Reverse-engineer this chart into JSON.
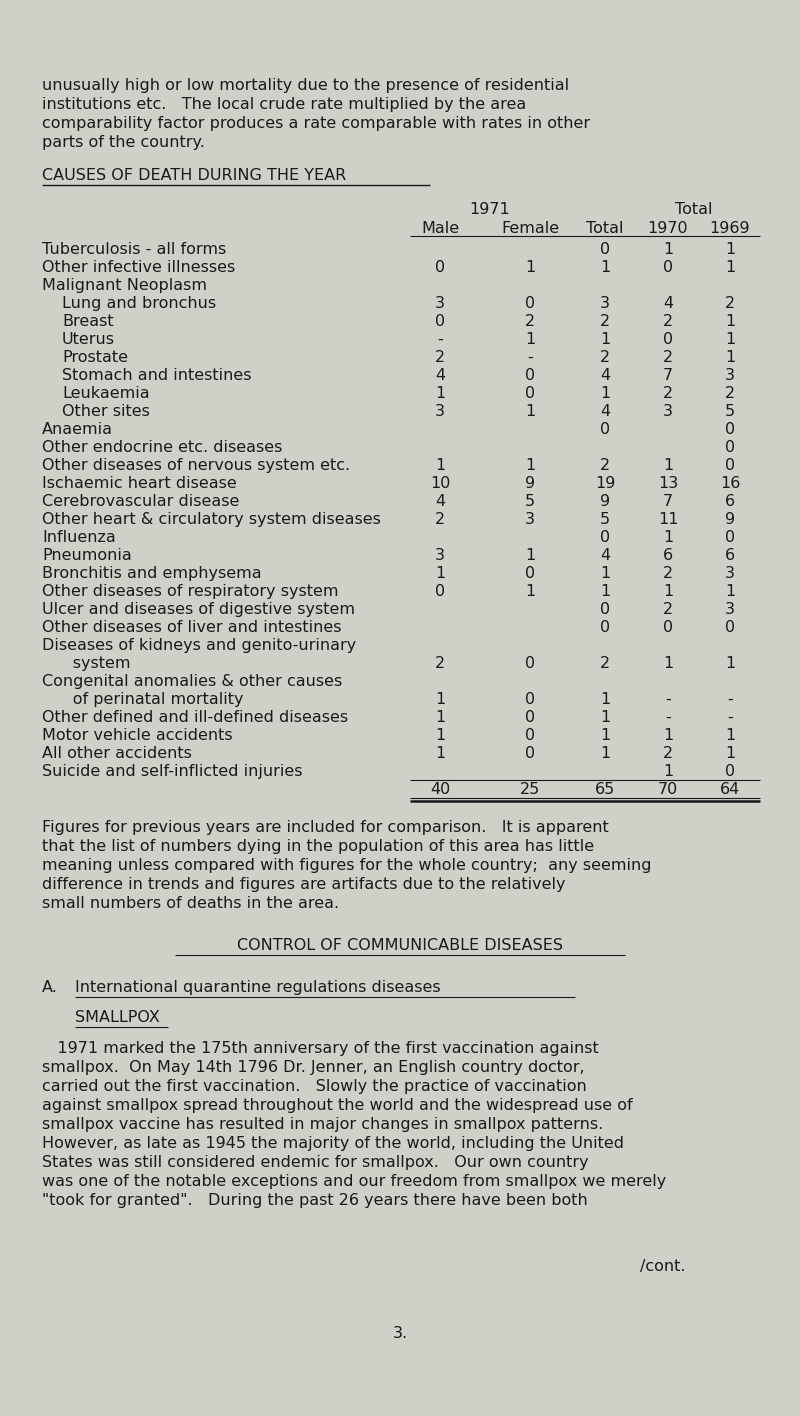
{
  "bg_color": "#cdd1c8",
  "text_color": "#1a1a1a",
  "font_family": "Courier New",
  "page_width": 8.0,
  "page_height": 14.16,
  "intro_text": [
    "unusually high or low mortality due to the presence of residential",
    "institutions etc.   The local crude rate multiplied by the area",
    "comparability factor produces a rate comparable with rates in other",
    "parts of the country."
  ],
  "section_title": "CAUSES OF DEATH DURING THE YEAR",
  "table_rows": [
    {
      "label": "Tuberculosis - all forms",
      "indent": 0,
      "male": "",
      "female": "",
      "total": "0",
      "y1970": "1",
      "y1969": "1"
    },
    {
      "label": "Other infective illnesses",
      "indent": 0,
      "male": "0",
      "female": "1",
      "total": "1",
      "y1970": "0",
      "y1969": "1"
    },
    {
      "label": "Malignant Neoplasm",
      "indent": 0,
      "male": "",
      "female": "",
      "total": "",
      "y1970": "",
      "y1969": ""
    },
    {
      "label": "Lung and bronchus",
      "indent": 1,
      "male": "3",
      "female": "0",
      "total": "3",
      "y1970": "4",
      "y1969": "2"
    },
    {
      "label": "Breast",
      "indent": 1,
      "male": "0",
      "female": "2",
      "total": "2",
      "y1970": "2",
      "y1969": "1"
    },
    {
      "label": "Uterus",
      "indent": 1,
      "male": "-",
      "female": "1",
      "total": "1",
      "y1970": "0",
      "y1969": "1"
    },
    {
      "label": "Prostate",
      "indent": 1,
      "male": "2",
      "female": "-",
      "total": "2",
      "y1970": "2",
      "y1969": "1"
    },
    {
      "label": "Stomach and intestines",
      "indent": 1,
      "male": "4",
      "female": "0",
      "total": "4",
      "y1970": "7",
      "y1969": "3"
    },
    {
      "label": "Leukaemia",
      "indent": 1,
      "male": "1",
      "female": "0",
      "total": "1",
      "y1970": "2",
      "y1969": "2"
    },
    {
      "label": "Other sites",
      "indent": 1,
      "male": "3",
      "female": "1",
      "total": "4",
      "y1970": "3",
      "y1969": "5"
    },
    {
      "label": "Anaemia",
      "indent": 0,
      "male": "",
      "female": "",
      "total": "0",
      "y1970": "",
      "y1969": "0"
    },
    {
      "label": "Other endocrine etc. diseases",
      "indent": 0,
      "male": "",
      "female": "",
      "total": "",
      "y1970": "",
      "y1969": "0"
    },
    {
      "label": "Other diseases of nervous system etc.",
      "indent": 0,
      "male": "1",
      "female": "1",
      "total": "2",
      "y1970": "1",
      "y1969": "0"
    },
    {
      "label": "Ischaemic heart disease",
      "indent": 0,
      "male": "10",
      "female": "9",
      "total": "19",
      "y1970": "13",
      "y1969": "16"
    },
    {
      "label": "Cerebrovascular disease",
      "indent": 0,
      "male": "4",
      "female": "5",
      "total": "9",
      "y1970": "7",
      "y1969": "6"
    },
    {
      "label": "Other heart & circulatory system diseases",
      "indent": 0,
      "male": "2",
      "female": "3",
      "total": "5",
      "y1970": "11",
      "y1969": "9"
    },
    {
      "label": "Influenza",
      "indent": 0,
      "male": "",
      "female": "",
      "total": "0",
      "y1970": "1",
      "y1969": "0"
    },
    {
      "label": "Pneumonia",
      "indent": 0,
      "male": "3",
      "female": "1",
      "total": "4",
      "y1970": "6",
      "y1969": "6"
    },
    {
      "label": "Bronchitis and emphysema",
      "indent": 0,
      "male": "1",
      "female": "0",
      "total": "1",
      "y1970": "2",
      "y1969": "3"
    },
    {
      "label": "Other diseases of respiratory system",
      "indent": 0,
      "male": "0",
      "female": "1",
      "total": "1",
      "y1970": "1",
      "y1969": "1"
    },
    {
      "label": "Ulcer and diseases of digestive system",
      "indent": 0,
      "male": "",
      "female": "",
      "total": "0",
      "y1970": "2",
      "y1969": "3"
    },
    {
      "label": "Other diseases of liver and intestines",
      "indent": 0,
      "male": "",
      "female": "",
      "total": "0",
      "y1970": "0",
      "y1969": "0"
    },
    {
      "label": "Diseases of kidneys and genito-urinary",
      "indent": 0,
      "male": "",
      "female": "",
      "total": "",
      "y1970": "",
      "y1969": ""
    },
    {
      "label": "      system",
      "indent": 0,
      "male": "2",
      "female": "0",
      "total": "2",
      "y1970": "1",
      "y1969": "1"
    },
    {
      "label": "Congenital anomalies & other causes",
      "indent": 0,
      "male": "",
      "female": "",
      "total": "",
      "y1970": "",
      "y1969": ""
    },
    {
      "label": "      of perinatal mortality",
      "indent": 0,
      "male": "1",
      "female": "0",
      "total": "1",
      "y1970": "-",
      "y1969": "-"
    },
    {
      "label": "Other defined and ill-defined diseases",
      "indent": 0,
      "male": "1",
      "female": "0",
      "total": "1",
      "y1970": "-",
      "y1969": "-"
    },
    {
      "label": "Motor vehicle accidents",
      "indent": 0,
      "male": "1",
      "female": "0",
      "total": "1",
      "y1970": "1",
      "y1969": "1"
    },
    {
      "label": "All other accidents",
      "indent": 0,
      "male": "1",
      "female": "0",
      "total": "1",
      "y1970": "2",
      "y1969": "1"
    },
    {
      "label": "Suicide and self-inflicted injuries",
      "indent": 0,
      "male": "",
      "female": "",
      "total": "",
      "y1970": "1",
      "y1969": "0"
    }
  ],
  "totals_row": {
    "male": "40",
    "female": "25",
    "total": "65",
    "y1970": "70",
    "y1969": "64"
  },
  "para1": [
    "Figures for previous years are included for comparison.   It is apparent",
    "that the list of numbers dying in the population of this area has little",
    "meaning unless compared with figures for the whole country;  any seeming",
    "difference in trends and figures are artifacts due to the relatively",
    "small numbers of deaths in the area."
  ],
  "section2_title": "CONTROL OF COMMUNICABLE DISEASES",
  "section2_a_label": "A.",
  "section2_a_title": "International quarantine regulations diseases",
  "section2_sub": "SMALLPOX",
  "section2_body": [
    "   1971 marked the 175th anniversary of the first vaccination against",
    "smallpox.  On May 14th 1796 Dr. Jenner, an English country doctor,",
    "carried out the first vaccination.   Slowly the practice of vaccination",
    "against smallpox spread throughout the world and the widespread use of",
    "smallpox vaccine has resulted in major changes in smallpox patterns.",
    "However, as late as 1945 the majority of the world, including the United",
    "States was still considered endemic for smallpox.   Our own country",
    "was one of the notable exceptions and our freedom from smallpox we merely",
    "\"took for granted\".   During the past 26 years there have been both"
  ],
  "cont_label": "/cont.",
  "page_number": "3."
}
